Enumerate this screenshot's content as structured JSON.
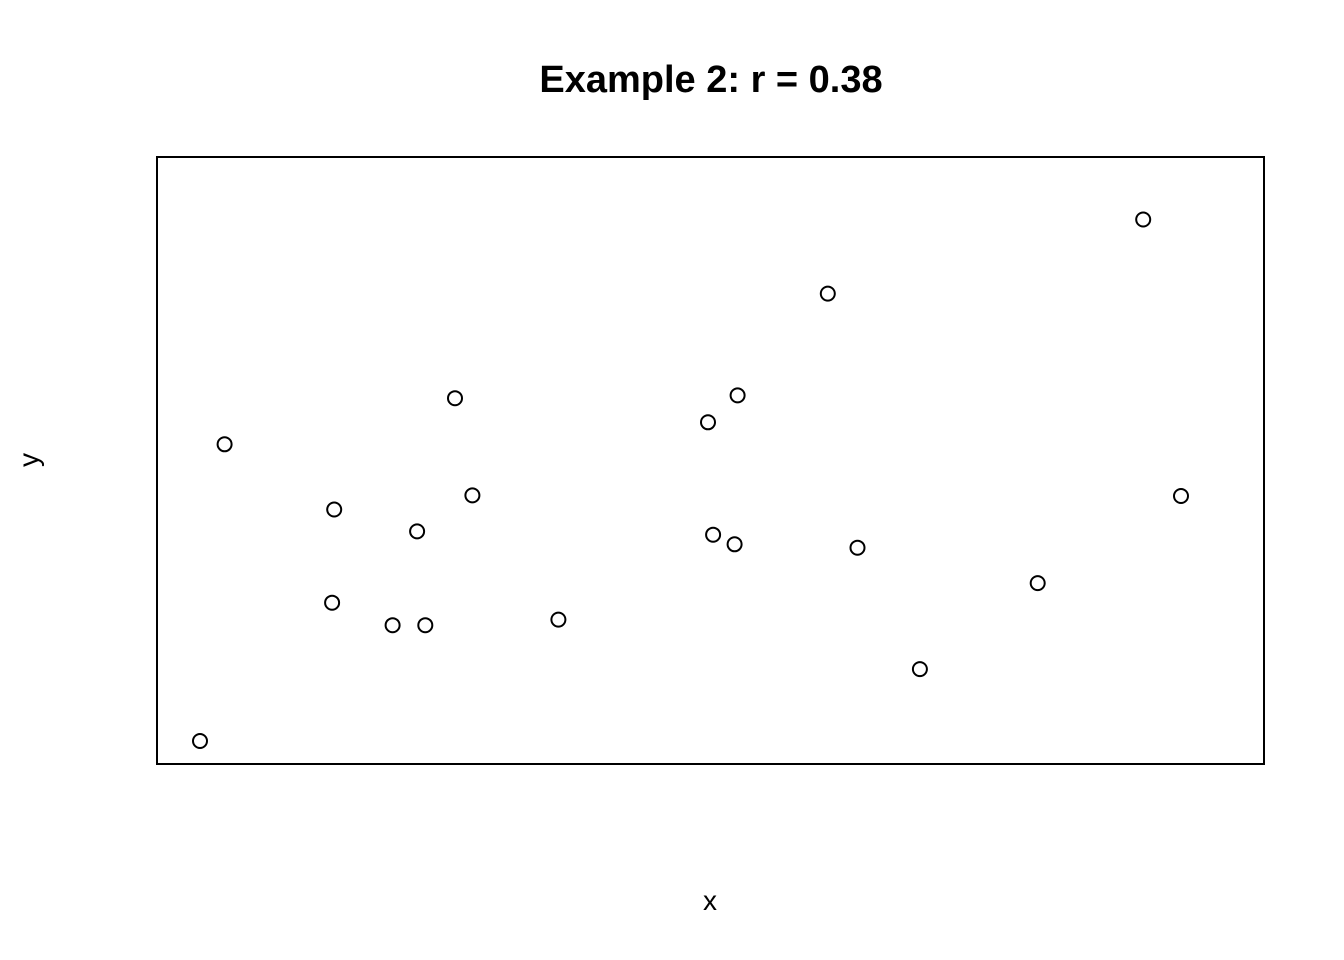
{
  "chart_data": {
    "type": "scatter",
    "title": "Example 2: r = 0.38",
    "xlabel": "x",
    "ylabel": "y",
    "axes_shown": false,
    "grid": false,
    "legend": "none",
    "xlim": [
      0,
      100
    ],
    "ylim": [
      0,
      100
    ],
    "point_style": "open-circle",
    "colors": {
      "point": "#000000",
      "frame": "#000000",
      "background": "#ffffff"
    },
    "points": [
      {
        "x": 0.2,
        "y": 0.0
      },
      {
        "x": 2.6,
        "y": 52.8
      },
      {
        "x": 13.1,
        "y": 24.6
      },
      {
        "x": 13.3,
        "y": 41.2
      },
      {
        "x": 19.0,
        "y": 20.6
      },
      {
        "x": 21.4,
        "y": 37.3
      },
      {
        "x": 22.2,
        "y": 20.6
      },
      {
        "x": 25.1,
        "y": 61.0
      },
      {
        "x": 26.8,
        "y": 43.7
      },
      {
        "x": 35.2,
        "y": 21.6
      },
      {
        "x": 49.8,
        "y": 56.7
      },
      {
        "x": 50.3,
        "y": 36.7
      },
      {
        "x": 52.4,
        "y": 35.0
      },
      {
        "x": 52.7,
        "y": 61.5
      },
      {
        "x": 61.5,
        "y": 79.6
      },
      {
        "x": 64.4,
        "y": 34.4
      },
      {
        "x": 70.5,
        "y": 12.8
      },
      {
        "x": 82.0,
        "y": 28.1
      },
      {
        "x": 92.3,
        "y": 92.8
      },
      {
        "x": 96.0,
        "y": 43.6
      }
    ]
  }
}
